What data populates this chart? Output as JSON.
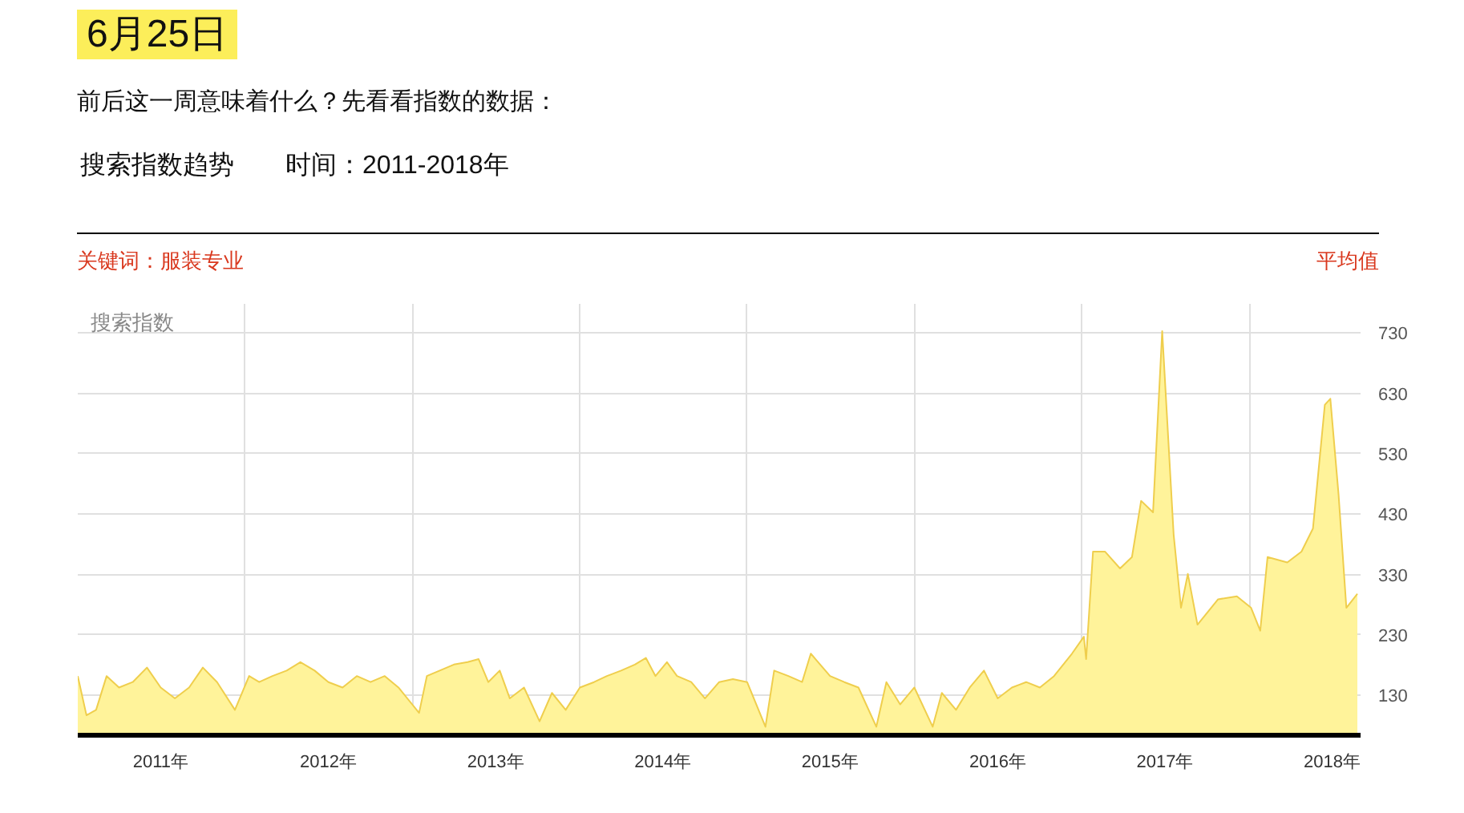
{
  "chart_data": {
    "type": "area",
    "title": "6月25日",
    "subtitle": "前后这一周意味着什么？先看看指数的数据：",
    "ylabel": "搜索指数",
    "annotations": [
      "搜索指数趋势　　时间：2011-2018年",
      "关键词：服装专业",
      "平均值"
    ],
    "x": [
      "2011-01-01",
      "2011-01-20",
      "2011-02-10",
      "2011-03-05",
      "2011-04-01",
      "2011-05-01",
      "2011-06-01",
      "2011-07-01",
      "2011-08-01",
      "2011-09-01",
      "2011-10-01",
      "2011-11-01",
      "2011-12-10",
      "2012-01-10",
      "2012-02-01",
      "2012-03-01",
      "2012-04-01",
      "2012-05-01",
      "2012-06-01",
      "2012-07-01",
      "2012-08-01",
      "2012-09-01",
      "2012-10-01",
      "2012-11-01",
      "2012-12-01",
      "2013-01-15",
      "2013-02-01",
      "2013-03-01",
      "2013-04-01",
      "2013-05-01",
      "2013-05-25",
      "2013-06-15",
      "2013-07-10",
      "2013-08-01",
      "2013-09-01",
      "2013-10-05",
      "2013-11-01",
      "2013-12-01",
      "2014-01-01",
      "2014-02-01",
      "2014-03-01",
      "2014-04-01",
      "2014-05-01",
      "2014-05-25",
      "2014-06-15",
      "2014-07-10",
      "2014-08-01",
      "2014-09-01",
      "2014-10-01",
      "2014-11-01",
      "2014-12-01",
      "2015-01-01",
      "2015-02-10",
      "2015-03-01",
      "2015-04-01",
      "2015-05-01",
      "2015-05-20",
      "2015-07-01",
      "2015-08-01",
      "2015-09-01",
      "2015-10-10",
      "2015-11-01",
      "2015-12-01",
      "2016-01-01",
      "2016-02-10",
      "2016-03-01",
      "2016-04-01",
      "2016-05-01",
      "2016-06-01",
      "2016-07-01",
      "2016-08-01",
      "2016-09-01",
      "2016-10-01",
      "2016-11-01",
      "2016-12-10",
      "2017-01-05",
      "2017-01-10",
      "2017-01-25",
      "2017-02-20",
      "2017-03-25",
      "2017-04-20",
      "2017-05-10",
      "2017-06-05",
      "2017-06-25",
      "2017-07-20",
      "2017-08-05",
      "2017-08-20",
      "2017-09-10",
      "2017-10-25",
      "2017-12-05",
      "2018-01-05",
      "2018-01-25",
      "2018-02-10",
      "2018-03-25",
      "2018-04-25",
      "2018-05-20",
      "2018-06-15",
      "2018-06-27",
      "2018-07-15",
      "2018-08-01",
      "2018-08-25"
    ],
    "series": [
      {
        "color": "#fff39a",
        "values": [
          162,
          97,
          106,
          162,
          143,
          152,
          176,
          143,
          125,
          143,
          176,
          152,
          106,
          162,
          152,
          162,
          171,
          185,
          171,
          152,
          143,
          162,
          152,
          162,
          143,
          101,
          162,
          171,
          181,
          185,
          190,
          152,
          171,
          125,
          143,
          87,
          134,
          106,
          143,
          152,
          162,
          171,
          181,
          192,
          162,
          185,
          162,
          152,
          125,
          152,
          157,
          152,
          78,
          171,
          162,
          152,
          199,
          162,
          152,
          143,
          78,
          152,
          115,
          143,
          78,
          134,
          106,
          143,
          171,
          125,
          143,
          152,
          143,
          162,
          199,
          227,
          190,
          368,
          368,
          340,
          359,
          452,
          433,
          733,
          396,
          275,
          331,
          247,
          289,
          294,
          275,
          237,
          359,
          350,
          368,
          406,
          611,
          621,
          462,
          275,
          298
        ]
      }
    ],
    "xlim": [
      "2011-01-01",
      "2018-09-01"
    ],
    "xticks": [
      {
        "value": "2011-07-01",
        "label": "2011年"
      },
      {
        "value": "2012-01-01",
        "label": null
      },
      {
        "value": "2012-07-01",
        "label": "2012年"
      },
      {
        "value": "2013-01-01",
        "label": null
      },
      {
        "value": "2013-07-01",
        "label": "2013年"
      },
      {
        "value": "2014-01-01",
        "label": null
      },
      {
        "value": "2014-07-01",
        "label": "2014年"
      },
      {
        "value": "2015-01-01",
        "label": null
      },
      {
        "value": "2015-07-01",
        "label": "2015年"
      },
      {
        "value": "2016-01-01",
        "label": null
      },
      {
        "value": "2016-07-01",
        "label": "2016年"
      },
      {
        "value": "2017-01-01",
        "label": null
      },
      {
        "value": "2017-07-01",
        "label": "2017年"
      },
      {
        "value": "2018-01-01",
        "label": null
      },
      {
        "value": "2018-07-01",
        "label": "2018年"
      }
    ],
    "ylim": [
      64,
      778
    ],
    "yticks": [
      130,
      230,
      330,
      430,
      530,
      630,
      730
    ],
    "grid": true
  }
}
